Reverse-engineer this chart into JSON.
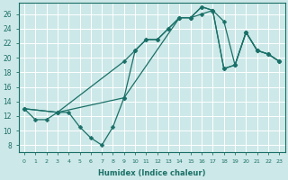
{
  "xlabel": "Humidex (Indice chaleur)",
  "bg_color": "#cde8e8",
  "grid_color": "#ffffff",
  "line_color": "#1a7068",
  "xlim": [
    -0.5,
    23.5
  ],
  "ylim": [
    7,
    27.5
  ],
  "curve1_x": [
    0,
    1,
    2,
    3,
    4,
    5,
    6,
    7,
    8,
    9,
    10,
    11,
    12,
    13,
    14,
    15,
    16,
    17,
    18,
    19,
    20,
    21,
    22,
    23
  ],
  "curve1_y": [
    13,
    11.5,
    11.5,
    12.5,
    12.5,
    10.5,
    9.0,
    8.0,
    10.5,
    14.5,
    21.0,
    22.5,
    22.5,
    24.0,
    25.5,
    25.5,
    27.0,
    26.5,
    25.0,
    19.0,
    23.5,
    21.0,
    20.5,
    19.5
  ],
  "curve2_x": [
    0,
    3,
    9,
    10,
    11,
    12,
    13,
    14,
    15,
    16,
    17,
    18,
    19,
    20,
    21,
    22,
    23
  ],
  "curve2_y": [
    13,
    12.5,
    19.5,
    21.0,
    22.5,
    22.5,
    24.0,
    25.5,
    25.5,
    27.0,
    26.5,
    18.5,
    19.0,
    23.5,
    21.0,
    20.5,
    19.5
  ],
  "curve3_x": [
    0,
    3,
    9,
    14,
    15,
    16,
    17,
    18,
    19,
    20,
    21,
    22,
    23
  ],
  "curve3_y": [
    13,
    12.5,
    14.5,
    25.5,
    25.5,
    26.0,
    26.5,
    18.5,
    19.0,
    23.5,
    21.0,
    20.5,
    19.5
  ]
}
